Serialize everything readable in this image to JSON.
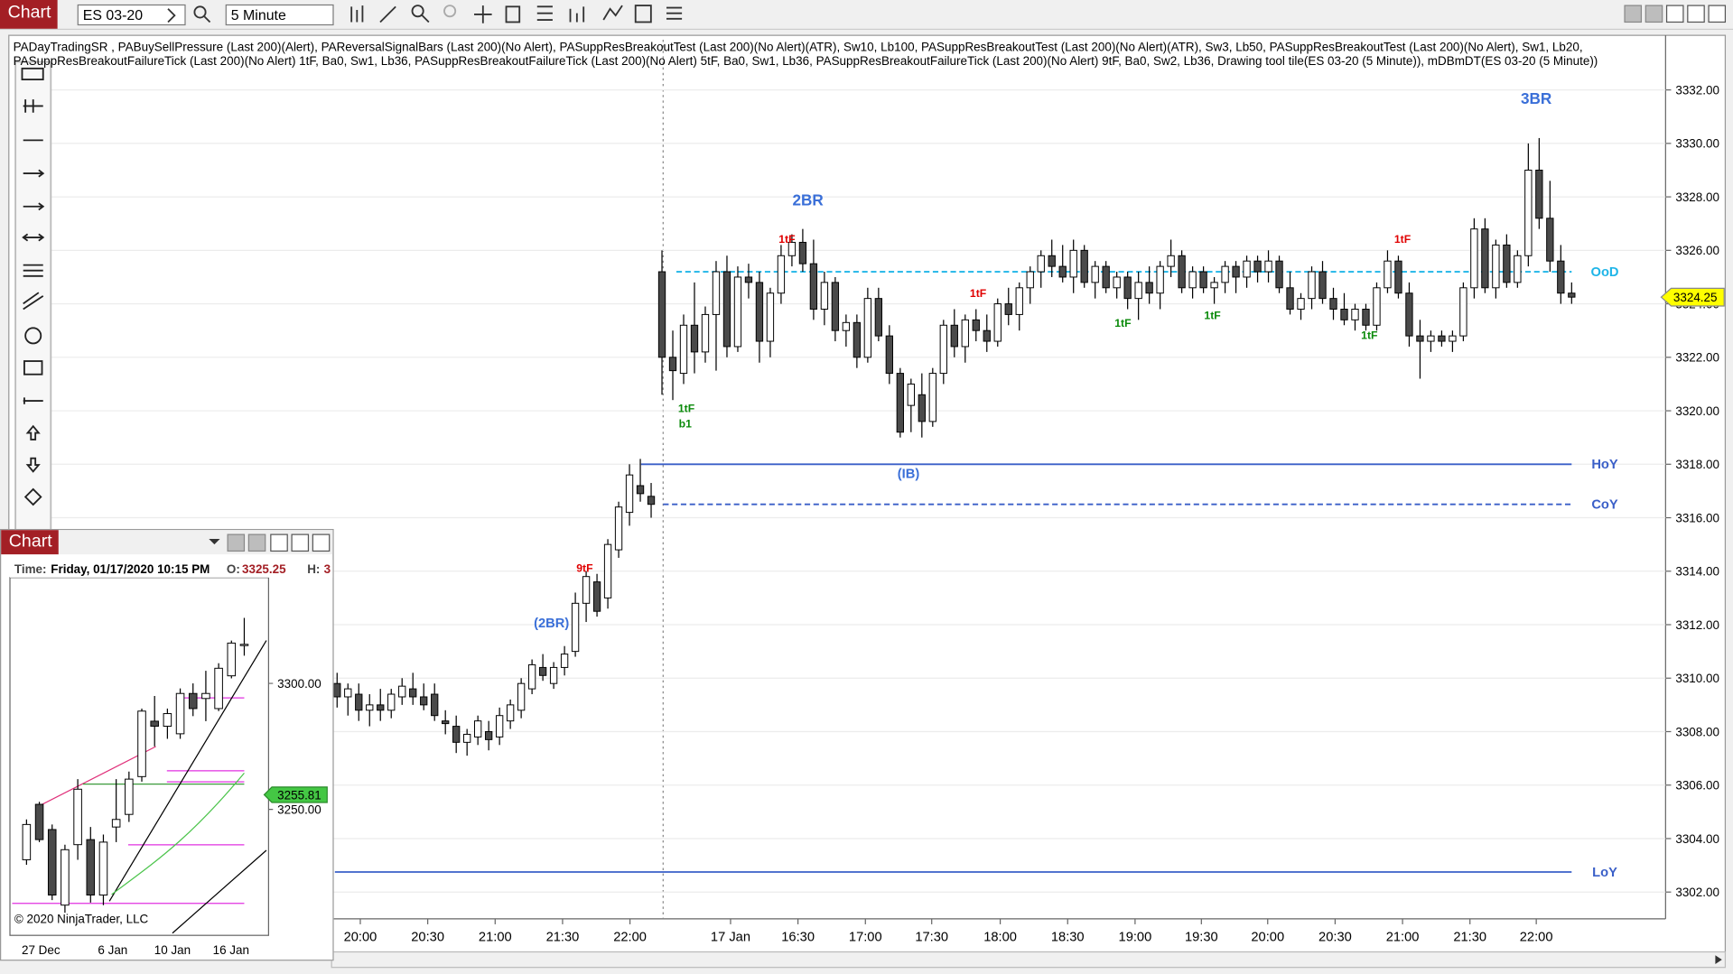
{
  "window": {
    "title": "Chart",
    "instrument": "ES 03-20",
    "interval": "5 Minute"
  },
  "indicators": [
    "PADayTradingSR , PABuySellPressure (Last 200)(Alert), PAReversalSignalBars (Last 200)(No Alert), PASuppResBreakoutTest (Last 200)(No Alert)(ATR),  Sw10,  Lb100, PASuppResBreakoutTest (Last 200)(No Alert)(ATR),  Sw3,  Lb50, PASuppResBreakoutTest (Last 200)(No Alert),  Sw1,  Lb20,",
    "PASuppResBreakoutFailureTick (Last 200)(No Alert) 1tF,  Ba0,  Sw1,  Lb36, PASuppResBreakoutFailureTick (Last 200)(No Alert) 5tF,  Ba0,  Sw1,  Lb36, PASuppResBreakoutFailureTick (Last 200)(No Alert) 9tF,  Ba0,  Sw2,  Lb36, Drawing tool tile(ES 03-20 (5 Minute)), mDBmDT(ES 03-20 (5 Minute))"
  ],
  "chart_data": {
    "type": "candlestick",
    "ohlc": [
      [
        3309.8,
        3310.2,
        3308.9,
        3309.3
      ],
      [
        3309.3,
        3309.8,
        3308.6,
        3309.6
      ],
      [
        3309.4,
        3309.8,
        3308.4,
        3308.8
      ],
      [
        3308.8,
        3309.4,
        3308.2,
        3309.0
      ],
      [
        3309.0,
        3309.6,
        3308.4,
        3308.8
      ],
      [
        3308.8,
        3309.6,
        3308.5,
        3309.4
      ],
      [
        3309.3,
        3310.0,
        3309.0,
        3309.7
      ],
      [
        3309.6,
        3310.2,
        3309.0,
        3309.3
      ],
      [
        3309.3,
        3309.8,
        3308.8,
        3309.0
      ],
      [
        3309.4,
        3309.8,
        3308.4,
        3308.6
      ],
      [
        3308.4,
        3308.8,
        3307.9,
        3308.3
      ],
      [
        3308.2,
        3308.6,
        3307.2,
        3307.6
      ],
      [
        3307.6,
        3308.1,
        3307.1,
        3307.9
      ],
      [
        3307.8,
        3308.6,
        3307.5,
        3308.4
      ],
      [
        3308.0,
        3308.4,
        3307.3,
        3307.7
      ],
      [
        3307.8,
        3308.9,
        3307.5,
        3308.6
      ],
      [
        3308.4,
        3309.2,
        3308.1,
        3309.0
      ],
      [
        3308.8,
        3310.0,
        3308.5,
        3309.8
      ],
      [
        3309.6,
        3310.7,
        3309.4,
        3310.5
      ],
      [
        3310.4,
        3310.9,
        3309.9,
        3310.1
      ],
      [
        3309.8,
        3310.6,
        3309.6,
        3310.4
      ],
      [
        3310.4,
        3311.2,
        3310.1,
        3310.9
      ],
      [
        3311.0,
        3313.2,
        3310.8,
        3312.8
      ],
      [
        3312.8,
        3314.0,
        3312.1,
        3313.8
      ],
      [
        3313.6,
        3313.9,
        3312.3,
        3312.5
      ],
      [
        3313.0,
        3315.2,
        3312.6,
        3315.0
      ],
      [
        3314.8,
        3316.6,
        3314.5,
        3316.4
      ],
      [
        3316.2,
        3318.0,
        3315.7,
        3317.6
      ],
      [
        3317.2,
        3318.2,
        3316.6,
        3316.9
      ],
      [
        3316.8,
        3317.3,
        3316.0,
        3316.5
      ],
      [
        3325.2,
        3326.0,
        3320.6,
        3322.0
      ],
      [
        3322.0,
        3323.0,
        3320.4,
        3321.5
      ],
      [
        3321.4,
        3323.6,
        3321.0,
        3323.2
      ],
      [
        3323.2,
        3324.8,
        3321.4,
        3322.2
      ],
      [
        3322.2,
        3323.9,
        3321.8,
        3323.6
      ],
      [
        3323.6,
        3325.6,
        3321.5,
        3325.2
      ],
      [
        3325.2,
        3325.8,
        3322.0,
        3322.4
      ],
      [
        3322.4,
        3325.4,
        3322.2,
        3325.0
      ],
      [
        3325.0,
        3325.5,
        3324.2,
        3324.8
      ],
      [
        3324.8,
        3325.2,
        3321.8,
        3322.6
      ],
      [
        3322.6,
        3324.6,
        3322.0,
        3324.4
      ],
      [
        3324.4,
        3326.2,
        3324.0,
        3325.8
      ],
      [
        3325.8,
        3326.6,
        3325.4,
        3326.3
      ],
      [
        3326.3,
        3326.8,
        3325.2,
        3325.5
      ],
      [
        3325.5,
        3326.4,
        3323.4,
        3323.8
      ],
      [
        3323.8,
        3325.2,
        3323.2,
        3324.8
      ],
      [
        3324.8,
        3325.0,
        3322.6,
        3323.0
      ],
      [
        3323.0,
        3323.6,
        3322.4,
        3323.3
      ],
      [
        3323.3,
        3323.6,
        3321.6,
        3322.0
      ],
      [
        3322.0,
        3324.6,
        3321.8,
        3324.2
      ],
      [
        3324.2,
        3324.6,
        3322.6,
        3322.8
      ],
      [
        3322.8,
        3323.2,
        3321.0,
        3321.4
      ],
      [
        3321.4,
        3321.6,
        3319.0,
        3319.2
      ],
      [
        3320.2,
        3321.2,
        3319.2,
        3321.0
      ],
      [
        3320.6,
        3321.4,
        3319.0,
        3319.6
      ],
      [
        3319.6,
        3321.6,
        3319.4,
        3321.4
      ],
      [
        3321.4,
        3323.4,
        3321.0,
        3323.2
      ],
      [
        3323.2,
        3323.8,
        3322.0,
        3322.4
      ],
      [
        3322.4,
        3323.6,
        3321.8,
        3323.4
      ],
      [
        3323.4,
        3323.8,
        3322.6,
        3323.0
      ],
      [
        3323.0,
        3323.6,
        3322.2,
        3322.6
      ],
      [
        3322.6,
        3324.2,
        3322.4,
        3324.0
      ],
      [
        3324.0,
        3324.6,
        3323.2,
        3323.6
      ],
      [
        3323.6,
        3324.8,
        3323.0,
        3324.6
      ],
      [
        3324.6,
        3325.4,
        3324.0,
        3325.2
      ],
      [
        3325.2,
        3326.0,
        3324.6,
        3325.8
      ],
      [
        3325.8,
        3326.4,
        3325.0,
        3325.4
      ],
      [
        3325.4,
        3326.2,
        3324.8,
        3325.0
      ],
      [
        3325.0,
        3326.4,
        3324.4,
        3326.0
      ],
      [
        3326.0,
        3326.2,
        3324.6,
        3324.8
      ],
      [
        3324.8,
        3325.6,
        3324.2,
        3325.4
      ],
      [
        3325.4,
        3325.6,
        3324.4,
        3324.6
      ],
      [
        3324.6,
        3325.2,
        3324.2,
        3325.0
      ],
      [
        3325.0,
        3325.2,
        3323.8,
        3324.2
      ],
      [
        3324.2,
        3325.2,
        3323.4,
        3324.8
      ],
      [
        3324.8,
        3325.4,
        3324.0,
        3324.4
      ],
      [
        3324.4,
        3325.6,
        3323.8,
        3325.4
      ],
      [
        3325.4,
        3326.4,
        3325.0,
        3325.8
      ],
      [
        3325.8,
        3326.0,
        3324.4,
        3324.6
      ],
      [
        3324.6,
        3325.4,
        3324.2,
        3325.2
      ],
      [
        3325.2,
        3325.4,
        3324.4,
        3324.6
      ],
      [
        3324.6,
        3325.0,
        3324.0,
        3324.8
      ],
      [
        3324.8,
        3325.6,
        3324.4,
        3325.4
      ],
      [
        3325.4,
        3325.6,
        3324.4,
        3325.0
      ],
      [
        3325.0,
        3325.8,
        3324.6,
        3325.6
      ],
      [
        3325.6,
        3325.8,
        3324.8,
        3325.2
      ],
      [
        3325.2,
        3326.0,
        3324.8,
        3325.6
      ],
      [
        3325.6,
        3325.8,
        3324.4,
        3324.6
      ],
      [
        3324.6,
        3325.2,
        3323.6,
        3323.8
      ],
      [
        3323.8,
        3324.4,
        3323.4,
        3324.2
      ],
      [
        3324.2,
        3325.4,
        3323.8,
        3325.2
      ],
      [
        3325.2,
        3325.6,
        3324.0,
        3324.2
      ],
      [
        3324.2,
        3324.6,
        3323.4,
        3323.8
      ],
      [
        3323.8,
        3324.4,
        3323.2,
        3323.4
      ],
      [
        3323.4,
        3324.0,
        3323.0,
        3323.8
      ],
      [
        3323.8,
        3324.0,
        3323.0,
        3323.2
      ],
      [
        3323.2,
        3324.8,
        3323.0,
        3324.6
      ],
      [
        3324.6,
        3326.0,
        3324.4,
        3325.6
      ],
      [
        3325.6,
        3325.8,
        3324.2,
        3324.4
      ],
      [
        3324.4,
        3324.8,
        3322.4,
        3322.8
      ],
      [
        3322.8,
        3323.4,
        3321.2,
        3322.6
      ],
      [
        3322.6,
        3323.0,
        3322.2,
        3322.8
      ],
      [
        3322.8,
        3323.0,
        3322.4,
        3322.6
      ],
      [
        3322.6,
        3323.0,
        3322.2,
        3322.8
      ],
      [
        3322.8,
        3324.8,
        3322.6,
        3324.6
      ],
      [
        3324.6,
        3327.2,
        3324.2,
        3326.8
      ],
      [
        3326.8,
        3327.2,
        3324.4,
        3324.6
      ],
      [
        3324.6,
        3326.4,
        3324.2,
        3326.2
      ],
      [
        3326.2,
        3326.6,
        3324.6,
        3324.8
      ],
      [
        3324.8,
        3326.0,
        3324.6,
        3325.8
      ],
      [
        3325.8,
        3330.0,
        3325.4,
        3329.0
      ],
      [
        3329.0,
        3330.2,
        3326.8,
        3327.2
      ],
      [
        3327.2,
        3328.6,
        3325.2,
        3325.6
      ],
      [
        3325.6,
        3326.2,
        3324.0,
        3324.4
      ],
      [
        3324.4,
        3324.8,
        3324.0,
        3324.25
      ]
    ],
    "ylim": [
      3301,
      3334
    ],
    "yticks": [
      {
        "value": 3302,
        "label": "3302.00"
      },
      {
        "value": 3304,
        "label": "3304.00"
      },
      {
        "value": 3306,
        "label": "3306.00"
      },
      {
        "value": 3308,
        "label": "3308.00"
      },
      {
        "value": 3310,
        "label": "3310.00"
      },
      {
        "value": 3312,
        "label": "3312.00"
      },
      {
        "value": 3314,
        "label": "3314.00"
      },
      {
        "value": 3316,
        "label": "3316.00"
      },
      {
        "value": 3318,
        "label": "3318.00"
      },
      {
        "value": 3320,
        "label": "3320.00"
      },
      {
        "value": 3322,
        "label": "3322.00"
      },
      {
        "value": 3324,
        "label": "3324.00"
      },
      {
        "value": 3326,
        "label": "3326.00"
      },
      {
        "value": 3328,
        "label": "3328.00"
      },
      {
        "value": 3330,
        "label": "3330.00"
      },
      {
        "value": 3332,
        "label": "3332.00"
      }
    ],
    "grid": true,
    "x_tick_labels": [
      "20:00",
      "20:30",
      "21:00",
      "21:30",
      "22:00",
      "17 Jan",
      "16:30",
      "17:00",
      "17:30",
      "18:00",
      "18:30",
      "19:00",
      "19:30",
      "20:00",
      "20:30",
      "21:00",
      "21:30",
      "22:00"
    ],
    "current_price": {
      "value": 3324.25,
      "label": "3324.25"
    },
    "levels": [
      {
        "name": "OoD",
        "value": 3325.2,
        "color": "#1fb5e8",
        "dashed": true
      },
      {
        "name": "HoY",
        "value": 3318,
        "color": "#3a5fc8",
        "dashed": false
      },
      {
        "name": "CoY",
        "value": 3316.5,
        "color": "#3a5fc8",
        "dashed": true
      },
      {
        "name": "LoY",
        "value": 3302.75,
        "color": "#3a5fc8",
        "dashed": false
      }
    ],
    "annotations": [
      {
        "text": "3BR",
        "color": "#3a6fd8"
      },
      {
        "text": "2BR",
        "color": "#3a6fd8"
      },
      {
        "text": "(IB)",
        "color": "#3a6fd8"
      },
      {
        "text": "(2BR)",
        "color": "#3a6fd8"
      },
      {
        "text": "9tF",
        "color": "#e00000"
      },
      {
        "text": "1tF",
        "color": "#e00000"
      },
      {
        "text": "1tF",
        "color": "#e00000"
      },
      {
        "text": "1tF",
        "color": "#e00000"
      },
      {
        "text": "1tF",
        "color": "#0a8a0a"
      },
      {
        "text": "b1",
        "color": "#0a8a0a"
      },
      {
        "text": "1tF",
        "color": "#0a8a0a"
      },
      {
        "text": "1tF",
        "color": "#0a8a0a"
      },
      {
        "text": "1tF",
        "color": "#0a8a0a"
      }
    ]
  },
  "inset": {
    "title": "Chart",
    "time_label": "Time:",
    "time_value": "Friday, 01/17/2020 10:15 PM",
    "open_label": "O:",
    "open_value": "3325.25",
    "high_label": "H:",
    "high_value": "3",
    "copyright": "© 2020 NinjaTrader, LLC",
    "type": "candlestick",
    "ohlc": [
      [
        3230,
        3246,
        3228,
        3244
      ],
      [
        3252,
        3253,
        3237,
        3238
      ],
      [
        3242,
        3244,
        3214,
        3216
      ],
      [
        3212,
        3236,
        3209,
        3234
      ],
      [
        3236,
        3262,
        3230,
        3258
      ],
      [
        3238,
        3243,
        3213,
        3216
      ],
      [
        3216,
        3240,
        3212,
        3237
      ],
      [
        3243,
        3262,
        3237,
        3246
      ],
      [
        3248,
        3265,
        3245,
        3262
      ],
      [
        3263,
        3290,
        3261,
        3289
      ],
      [
        3285,
        3295,
        3275,
        3283
      ],
      [
        3283,
        3290,
        3278,
        3288
      ],
      [
        3280,
        3298,
        3278,
        3296
      ],
      [
        3296,
        3300,
        3287,
        3290
      ],
      [
        3294,
        3305,
        3285,
        3296
      ],
      [
        3290,
        3308,
        3289,
        3306
      ],
      [
        3303,
        3317,
        3302,
        3316
      ],
      [
        3315,
        3326,
        3311,
        3315.5
      ]
    ],
    "ylim": [
      3200,
      3342
    ],
    "yticks": [
      {
        "value": 3250,
        "label": "3250.00"
      },
      {
        "value": 3300,
        "label": "3300.00"
      }
    ],
    "x_tick_labels": [
      "27 Dec",
      "6 Jan",
      "10 Jan",
      "16 Jan"
    ],
    "current_price": {
      "value": 3255.81,
      "label": "3255.81"
    }
  }
}
